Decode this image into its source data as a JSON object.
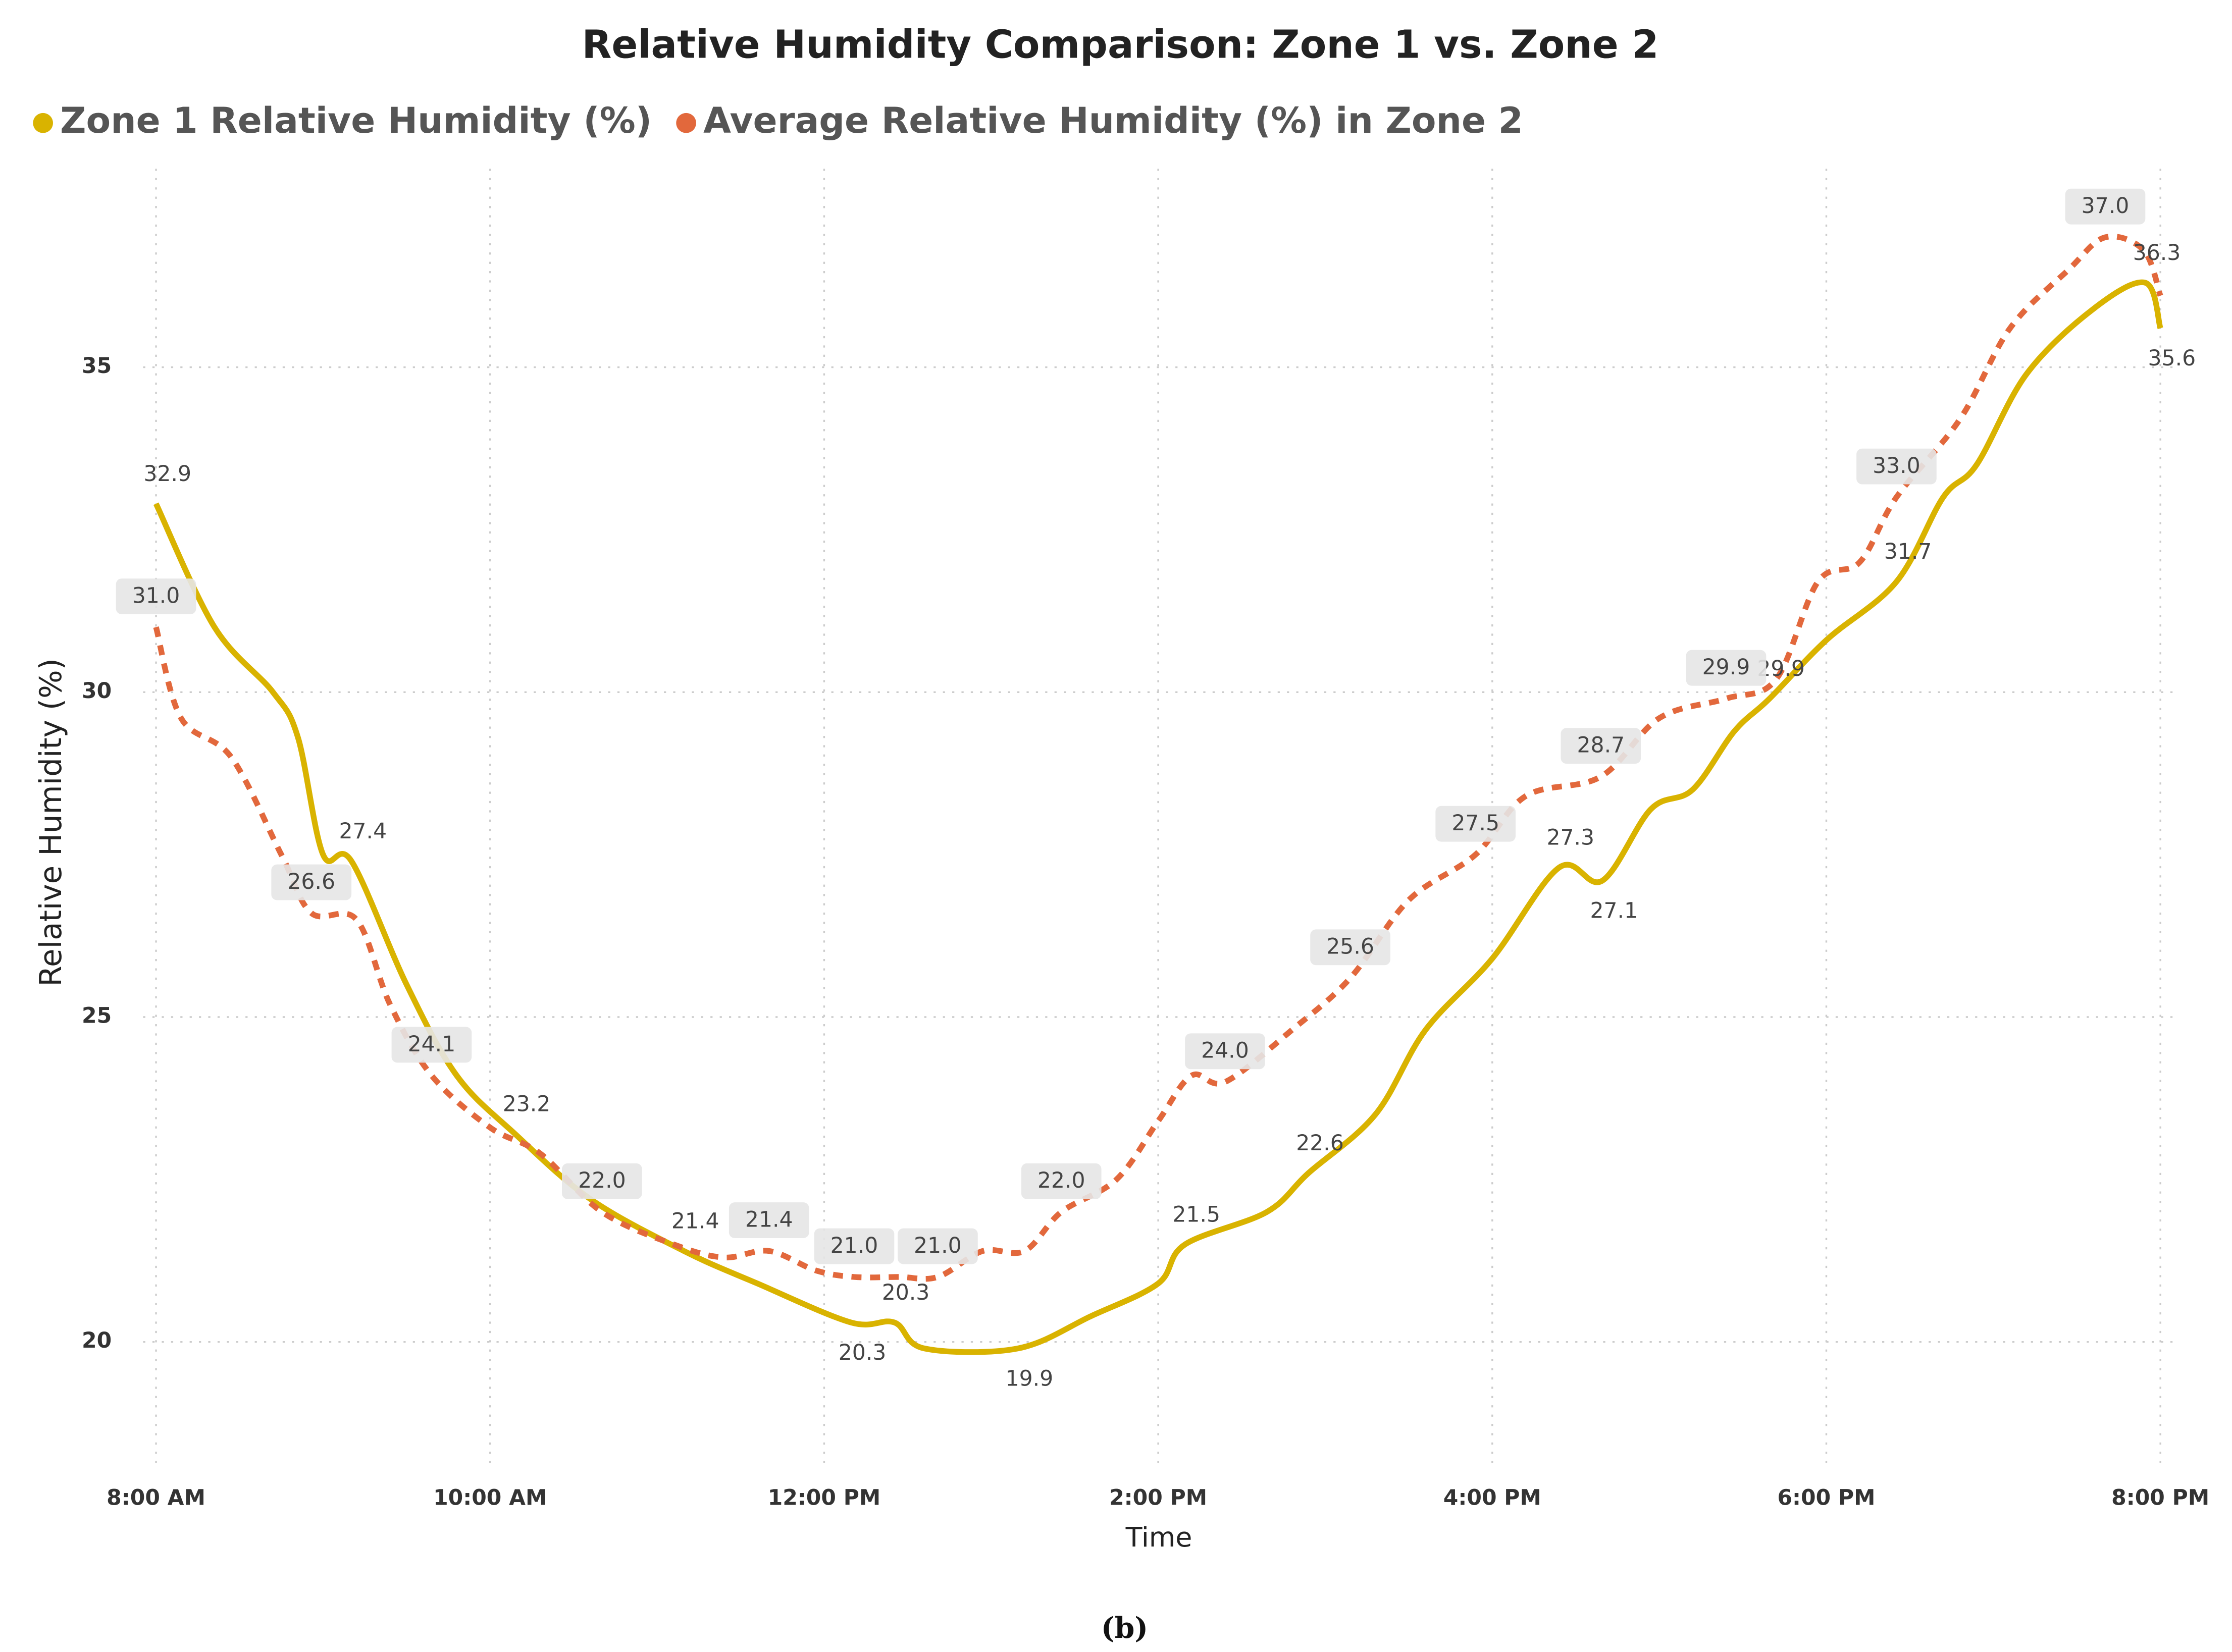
{
  "chart_data": {
    "type": "line",
    "title": "Relative Humidity Comparison: Zone 1 vs. Zone 2",
    "x_label": "Time",
    "y_label": "Relative Humidity (%)",
    "caption": "(b)",
    "xlim": [
      0,
      12
    ],
    "xticks": [
      {
        "value": 0,
        "label": "8:00 AM"
      },
      {
        "value": 2,
        "label": "10:00 AM"
      },
      {
        "value": 4,
        "label": "12:00 PM"
      },
      {
        "value": 6,
        "label": "2:00 PM"
      },
      {
        "value": 8,
        "label": "4:00 PM"
      },
      {
        "value": 10,
        "label": "6:00 PM"
      },
      {
        "value": 12,
        "label": "8:00 PM"
      }
    ],
    "ylim": [
      18.2,
      37.9
    ],
    "yticks": [
      20,
      25,
      30,
      35
    ],
    "grid": true,
    "legend": "top-left",
    "series": [
      {
        "name": "Zone 1 Relative Humidity (%)",
        "color": "#d9b300",
        "style": "solid",
        "x": [
          0,
          0.35,
          0.7,
          0.85,
          1.0,
          1.17,
          1.5,
          1.8,
          2.15,
          2.6,
          3.16,
          3.6,
          4.16,
          4.42,
          4.6,
          5.16,
          5.6,
          6.0,
          6.16,
          6.65,
          6.9,
          7.3,
          7.6,
          8.0,
          8.4,
          8.66,
          8.95,
          9.2,
          9.45,
          9.66,
          10.0,
          10.42,
          10.7,
          10.9,
          11.2,
          11.6,
          11.91,
          12.0
        ],
        "values": [
          32.9,
          31.0,
          30.0,
          29.3,
          27.5,
          27.4,
          25.5,
          24.1,
          23.2,
          22.2,
          21.4,
          20.9,
          20.3,
          20.3,
          19.9,
          19.9,
          20.4,
          20.9,
          21.5,
          22.0,
          22.6,
          23.5,
          24.8,
          25.9,
          27.3,
          27.1,
          28.2,
          28.5,
          29.4,
          29.9,
          30.8,
          31.7,
          33.0,
          33.5,
          34.9,
          35.9,
          36.3,
          35.6
        ],
        "value_labels": [
          "32.9",
          null,
          null,
          null,
          null,
          "27.4",
          null,
          null,
          "23.2",
          null,
          "21.4",
          null,
          "20.3",
          "20.3",
          null,
          "19.9",
          null,
          null,
          "21.5",
          null,
          "22.6",
          null,
          null,
          null,
          "27.3",
          "27.1",
          null,
          null,
          null,
          "29.9",
          null,
          "31.7",
          null,
          null,
          null,
          null,
          "36.3",
          "35.6"
        ]
      },
      {
        "name": "Average Relative Humidity (%) in Zone 2",
        "color": "#e2683c",
        "style": "dashed",
        "x": [
          0,
          0.15,
          0.45,
          0.75,
          0.93,
          1.2,
          1.4,
          1.65,
          2.0,
          2.3,
          2.67,
          3.1,
          3.4,
          3.67,
          3.95,
          4.18,
          4.45,
          4.68,
          4.95,
          5.2,
          5.42,
          5.75,
          6.0,
          6.2,
          6.4,
          6.8,
          7.15,
          7.5,
          7.9,
          8.2,
          8.65,
          9.0,
          9.4,
          9.7,
          9.95,
          10.2,
          10.42,
          10.8,
          11.1,
          11.45,
          11.67,
          11.9,
          12.0
        ],
        "values": [
          31.0,
          29.6,
          29.0,
          27.5,
          26.6,
          26.5,
          25.2,
          24.1,
          23.3,
          22.9,
          22.0,
          21.5,
          21.3,
          21.4,
          21.1,
          21.0,
          21.0,
          21.0,
          21.4,
          21.4,
          22.0,
          22.5,
          23.4,
          24.1,
          24.0,
          24.8,
          25.6,
          26.8,
          27.5,
          28.4,
          28.7,
          29.6,
          29.9,
          30.2,
          31.7,
          32.0,
          33.0,
          34.2,
          35.6,
          36.5,
          37.0,
          36.8,
          36.1
        ],
        "value_labels": [
          "31.0",
          null,
          null,
          null,
          "26.6",
          null,
          null,
          "24.1",
          null,
          null,
          "22.0",
          null,
          null,
          "21.4",
          null,
          "21.0",
          null,
          "21.0",
          null,
          null,
          "22.0",
          null,
          null,
          null,
          "24.0",
          null,
          "25.6",
          null,
          "27.5",
          null,
          "28.7",
          null,
          "29.9",
          null,
          null,
          null,
          "33.0",
          null,
          null,
          null,
          "37.0",
          null,
          null
        ]
      }
    ]
  }
}
